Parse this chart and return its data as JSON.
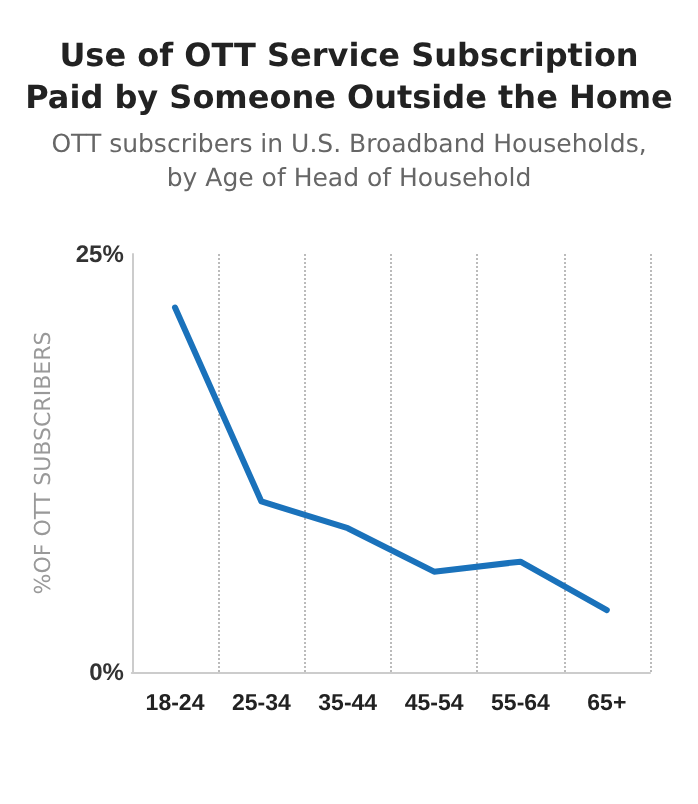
{
  "chart_data": {
    "type": "line",
    "title": "Use of OTT Service Subscription\nPaid by Someone Outside the Home",
    "subtitle": "OTT subscribers in U.S. Broadband Households,\nby Age of Head of Household",
    "ylabel": "%OF OTT SUBSCRIBERS",
    "categories": [
      "18-24",
      "25-34",
      "35-44",
      "45-54",
      "55-64",
      "65+"
    ],
    "series": [
      {
        "color": "#1a72bb",
        "values": [
          21.8,
          10.2,
          8.6,
          6.0,
          6.6,
          3.7
        ]
      }
    ],
    "ylim": [
      0,
      25
    ],
    "yticks": [
      {
        "value": 0,
        "label": "0%"
      },
      {
        "value": 25,
        "label": "25%"
      }
    ],
    "grid": "x",
    "marker": "none",
    "line_style": "solid"
  }
}
